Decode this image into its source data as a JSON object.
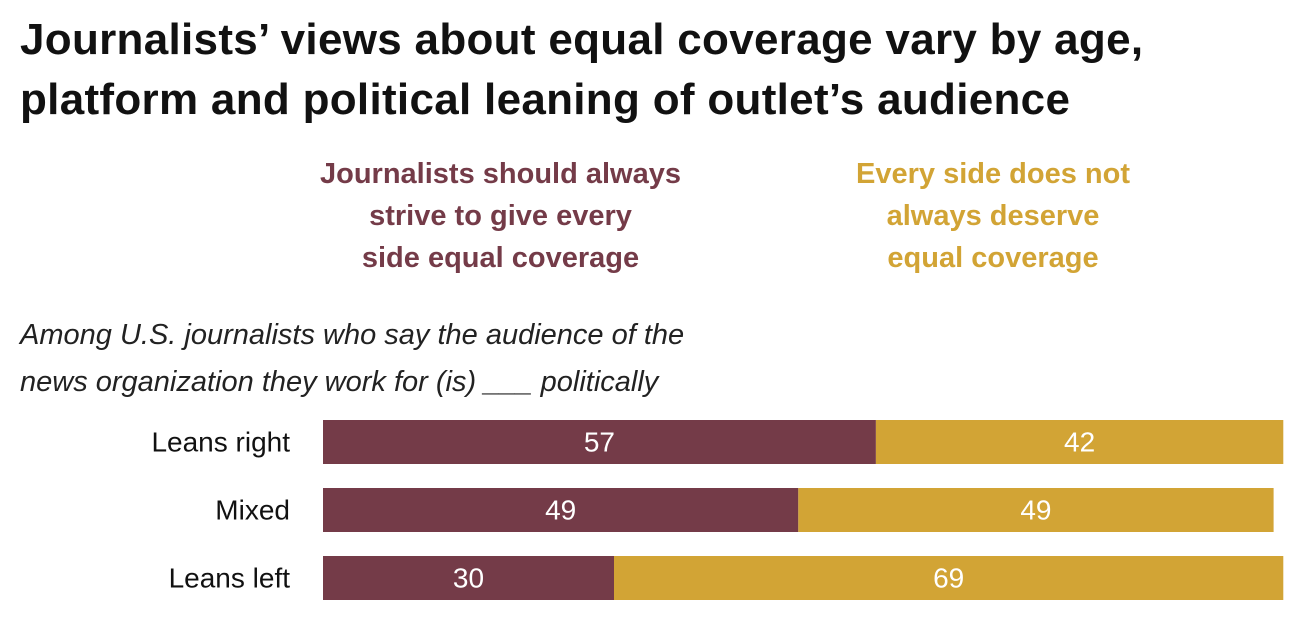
{
  "title": {
    "line1": "Journalists’ views about equal coverage vary by age,",
    "line2": "platform and political leaning of outlet’s audience"
  },
  "legend": {
    "agree": [
      "Journalists should always",
      "strive to give every",
      "side equal coverage"
    ],
    "disagree": [
      "Every side does not",
      "always deserve",
      "equal coverage"
    ]
  },
  "subtitle": {
    "line1": "Among U.S. journalists who say the audience of the",
    "line2": "news organization they work for (is) ___ politically"
  },
  "colors": {
    "agree": "#743B48",
    "disagree": "#D2A435",
    "bar_label": "#ffffff",
    "category_label": "#111111"
  },
  "chart_data": {
    "type": "bar",
    "orientation": "horizontal",
    "stacked": true,
    "title": "Journalists’ views about equal coverage vary by age, platform and political leaning of outlet’s audience",
    "xlim": [
      0,
      100
    ],
    "categories": [
      "Leans right",
      "Mixed",
      "Leans left"
    ],
    "series": [
      {
        "name": "Journalists should always strive to give every side equal coverage",
        "values": [
          57,
          49,
          30
        ]
      },
      {
        "name": "Every side does not always deserve equal coverage",
        "values": [
          42,
          49,
          69
        ]
      }
    ]
  }
}
